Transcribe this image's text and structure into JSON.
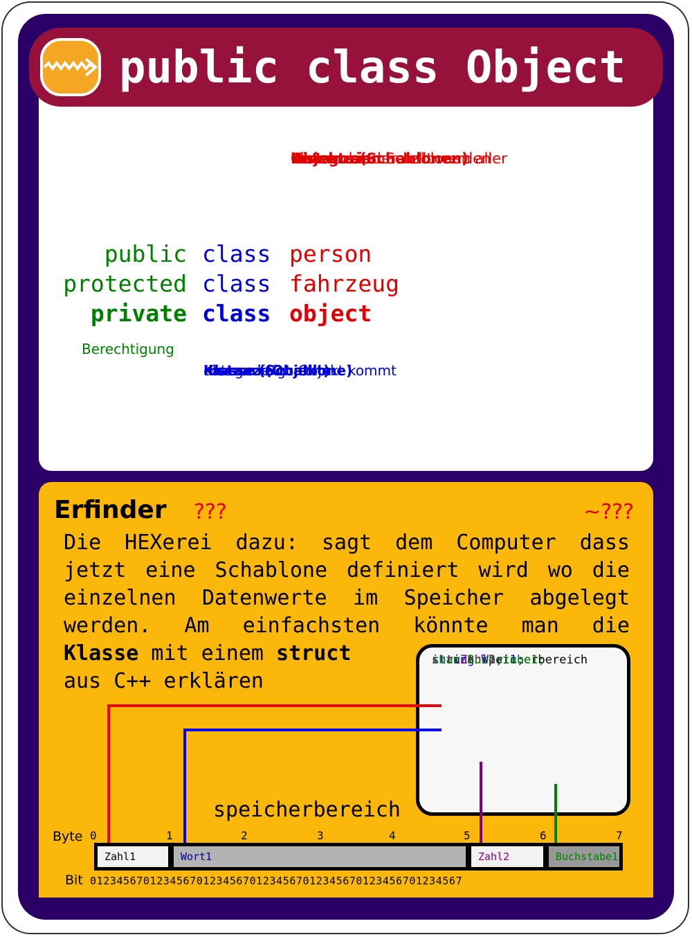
{
  "header": {
    "title": "public class Object"
  },
  "logo": {
    "icon": "zigzag-arrow-icon",
    "color": "#f5a623"
  },
  "annotations_top": [
    {
      "text": "Objekte (Schablonen)",
      "bold": true
    },
    {
      "text": "Kategorien",
      "bold": true
    },
    {
      "text": "können hier erstellt werden"
    },
    {
      "text": "Klassen sind Schablonen aller"
    },
    {
      "text": "Instanzen",
      "bold": true
    }
  ],
  "declarations": [
    {
      "modifier": "public",
      "keyword": "class",
      "name": "person",
      "bold": false
    },
    {
      "modifier": "protected",
      "keyword": "class",
      "name": "fahrzeug",
      "bold": false
    },
    {
      "modifier": "private",
      "keyword": "class",
      "name": "object",
      "bold": true
    }
  ],
  "labels": {
    "permission": "Berechtigung"
  },
  "annotations_bottom": [
    {
      "text": "Klasse (Schablone)",
      "bold": true
    },
    {
      "text": "Instanz (Objekt)",
      "bold": true
    },
    {
      "text": "Kategorie"
    },
    {
      "text": "die nun folgt"
    },
    {
      "text": "Klasse die zu Objekt kommt"
    }
  ],
  "info": {
    "heading": "Erfinder",
    "left_value": "???",
    "right_value": "~???",
    "desc_lines": [
      "Die HEXerei dazu: sagt dem Computer dass",
      "jetzt eine Schablone definiert wird wo die",
      "einzelnen Datenwerte im Speicher abgelegt",
      "werden. Am einfachsten könnte man die"
    ],
    "desc_klasse": "Klasse",
    "desc_mit": " mit einem ",
    "desc_struct": "struct",
    "desc_last": "aus C++ erklären"
  },
  "struct_box": {
    "lines": [
      {
        "text": "struct speicherbereich",
        "color": "#000000"
      },
      {
        "text": "int Zahl1;",
        "color": "#cc0000"
      },
      {
        "text": "string Wort1;",
        "color": "#0000cc"
      },
      {
        "text": "int Zahl2;",
        "color": "#800080"
      },
      {
        "text": "char Buchstabe1;",
        "color": "#008000"
      }
    ]
  },
  "memory": {
    "title": "speicherbereich",
    "byte_label": "Byte",
    "bit_label": "Bit",
    "byte_numbers": [
      "0",
      "1",
      "2",
      "3",
      "4",
      "5",
      "6",
      "7"
    ],
    "cells": [
      {
        "label": "Zahl1",
        "color": "#000000",
        "bg": "#f2f2f2",
        "start": 0,
        "end": 1
      },
      {
        "label": "Wort1",
        "color": "#00008b",
        "bg": "#b3b3b3",
        "start": 1,
        "end": 5
      },
      {
        "label": "Zahl2",
        "color": "#800080",
        "bg": "#f2f2f2",
        "start": 5,
        "end": 6
      },
      {
        "label": "Buchstabe1",
        "color": "#008000",
        "bg": "#999999",
        "start": 6,
        "end": 7
      }
    ],
    "bits": "01234567012345670123456701234567012345670123456701234567"
  },
  "colors": {
    "frame": "#2a0066",
    "banner": "#96123a",
    "panel": "#fbb80a"
  }
}
